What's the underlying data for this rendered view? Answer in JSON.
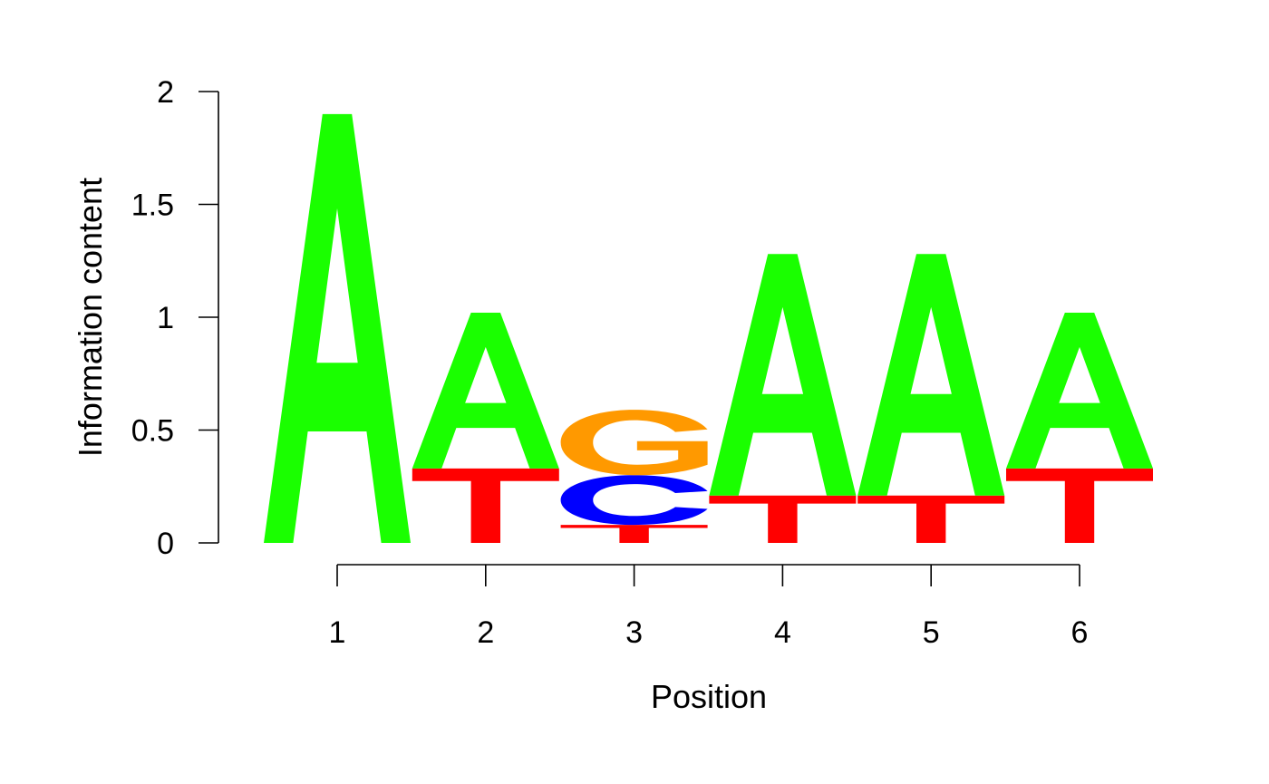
{
  "chart_data": {
    "type": "sequence-logo",
    "xlabel": "Position",
    "ylabel": "Information content",
    "ylim": [
      0,
      2
    ],
    "y_ticks": [
      {
        "value": 0,
        "label": "0"
      },
      {
        "value": 0.5,
        "label": "0.5"
      },
      {
        "value": 1,
        "label": "1"
      },
      {
        "value": 1.5,
        "label": "1.5"
      },
      {
        "value": 2,
        "label": "2"
      }
    ],
    "positions": [
      {
        "label": "1",
        "stack": [
          {
            "letter": "A",
            "height": 1.9
          }
        ]
      },
      {
        "label": "2",
        "stack": [
          {
            "letter": "T",
            "height": 0.33
          },
          {
            "letter": "A",
            "height": 0.69
          }
        ]
      },
      {
        "label": "3",
        "stack": [
          {
            "letter": "T",
            "height": 0.08
          },
          {
            "letter": "C",
            "height": 0.22
          },
          {
            "letter": "G",
            "height": 0.29
          }
        ]
      },
      {
        "label": "4",
        "stack": [
          {
            "letter": "T",
            "height": 0.21
          },
          {
            "letter": "A",
            "height": 1.07
          }
        ]
      },
      {
        "label": "5",
        "stack": [
          {
            "letter": "T",
            "height": 0.21
          },
          {
            "letter": "A",
            "height": 1.07
          }
        ]
      },
      {
        "label": "6",
        "stack": [
          {
            "letter": "T",
            "height": 0.33
          },
          {
            "letter": "A",
            "height": 0.69
          }
        ]
      }
    ],
    "colors": {
      "A": "#1aff00",
      "C": "#0000ff",
      "G": "#ff9900",
      "T": "#ff0000"
    },
    "grid": false
  }
}
